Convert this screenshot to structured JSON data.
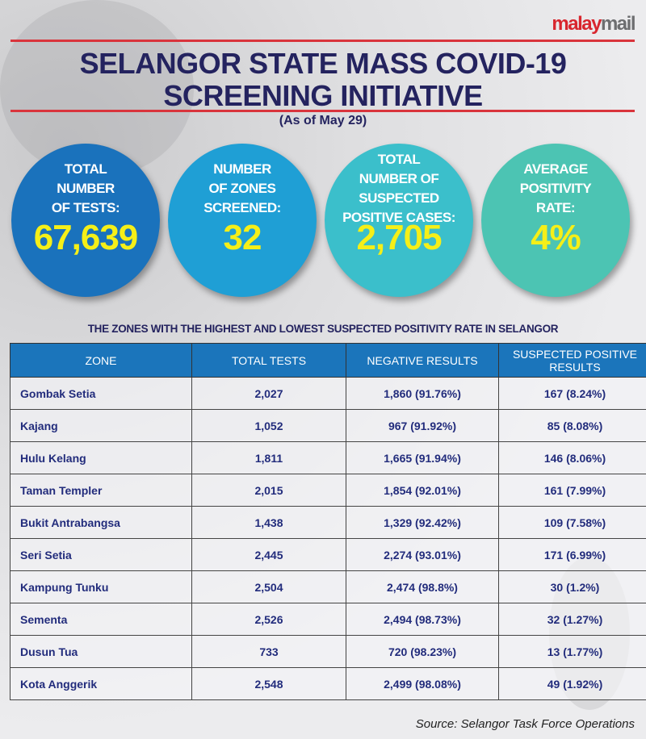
{
  "logo": {
    "part1": "malay",
    "part2": "mail"
  },
  "header": {
    "title_line1": "SELANGOR STATE MASS COVID-19",
    "title_line2": "SCREENING INITIATIVE",
    "subtitle": "(As of May 29)"
  },
  "stats": [
    {
      "label": [
        "TOTAL",
        "NUMBER",
        "OF TESTS:"
      ],
      "value": "67,639",
      "color": "#1a72bc"
    },
    {
      "label": [
        "NUMBER",
        "OF ZONES",
        "SCREENED:"
      ],
      "value": "32",
      "color": "#1f9fd5"
    },
    {
      "label": [
        "TOTAL",
        "NUMBER OF",
        "SUSPECTED",
        "POSITIVE CASES:"
      ],
      "value": "2,705",
      "color": "#3bbfcb"
    },
    {
      "label": [
        "AVERAGE",
        "POSITIVITY",
        "RATE:"
      ],
      "value": "4%",
      "color": "#4cc4b3"
    }
  ],
  "colors": {
    "title": "#24235f",
    "rule": "#d9343c",
    "table_header": "#1b75bb",
    "value_text": "#f5ef18",
    "cell_text": "#222c7c"
  },
  "chart_data": {
    "type": "table",
    "title": "THE ZONES WITH THE HIGHEST AND LOWEST SUSPECTED POSITIVITY RATE IN SELANGOR",
    "columns": [
      "ZONE",
      "TOTAL TESTS",
      "NEGATIVE RESULTS",
      "SUSPECTED POSITIVE RESULTS"
    ],
    "rows": [
      [
        "Gombak Setia",
        "2,027",
        "1,860 (91.76%)",
        "167 (8.24%)"
      ],
      [
        "Kajang",
        "1,052",
        "967 (91.92%)",
        "85 (8.08%)"
      ],
      [
        "Hulu Kelang",
        "1,811",
        "1,665 (91.94%)",
        "146 (8.06%)"
      ],
      [
        "Taman Templer",
        "2,015",
        "1,854 (92.01%)",
        "161 (7.99%)"
      ],
      [
        "Bukit Antrabangsa",
        "1,438",
        "1,329 (92.42%)",
        "109 (7.58%)"
      ],
      [
        "Seri Setia",
        "2,445",
        "2,274 (93.01%)",
        "171 (6.99%)"
      ],
      [
        "Kampung Tunku",
        "2,504",
        "2,474 (98.8%)",
        "30 (1.2%)"
      ],
      [
        "Sementa",
        "2,526",
        "2,494 (98.73%)",
        "32 (1.27%)"
      ],
      [
        "Dusun Tua",
        "733",
        "720 (98.23%)",
        "13 (1.77%)"
      ],
      [
        "Kota Anggerik",
        "2,548",
        "2,499 (98.08%)",
        "49 (1.92%)"
      ]
    ]
  },
  "source": "Source: Selangor Task Force Operations"
}
